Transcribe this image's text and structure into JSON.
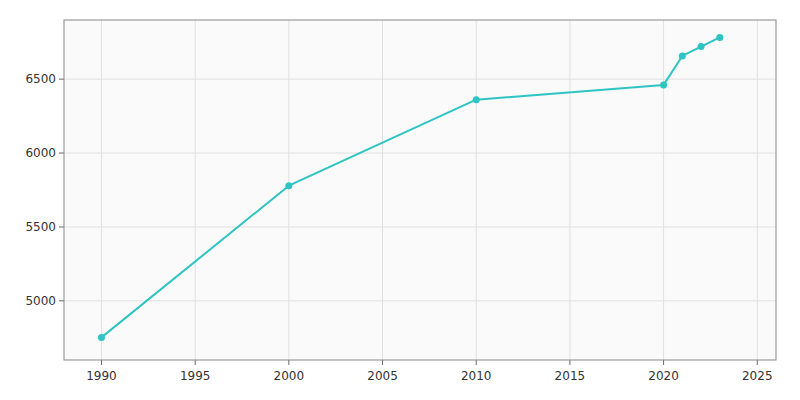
{
  "chart_data": {
    "type": "line",
    "x": [
      1990,
      2000,
      2010,
      2020,
      2021,
      2022,
      2023
    ],
    "values": [
      4753,
      5779,
      6361,
      6461,
      6657,
      6720,
      6782
    ],
    "color": "#2ec4c4",
    "marker": "circle",
    "xlim": [
      1988,
      2026
    ],
    "ylim": [
      4600,
      6900
    ],
    "xticks": [
      1990,
      1995,
      2000,
      2005,
      2010,
      2015,
      2020,
      2025
    ],
    "yticks": [
      5000,
      5500,
      6000,
      6500
    ],
    "grid": true
  }
}
